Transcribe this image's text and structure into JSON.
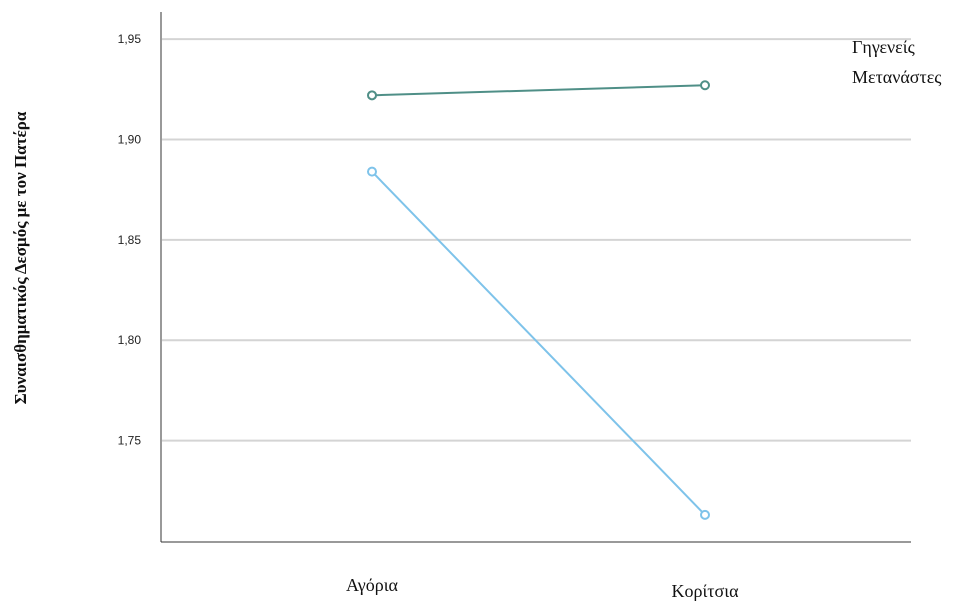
{
  "chart_data": {
    "type": "line",
    "categories": [
      "Αγόρια",
      "Κορίτσια"
    ],
    "series": [
      {
        "name": "Γηγενείς",
        "values": [
          1.922,
          1.927
        ],
        "color": "#4f8f87"
      },
      {
        "name": "Μετανάστες",
        "values": [
          1.884,
          1.713
        ],
        "color": "#7ec3ea"
      }
    ],
    "ylabel": "Συναισθηματικός Δεσμός με τον Πατέρα",
    "xlabel": "",
    "yticks": [
      "1,95",
      "1,90",
      "1,85",
      "1,80",
      "1,75"
    ],
    "ytick_values": [
      1.95,
      1.9,
      1.85,
      1.8,
      1.75
    ],
    "ylim": [
      1.6995,
      1.9635
    ],
    "grid": true,
    "legend_position": "top-right"
  }
}
